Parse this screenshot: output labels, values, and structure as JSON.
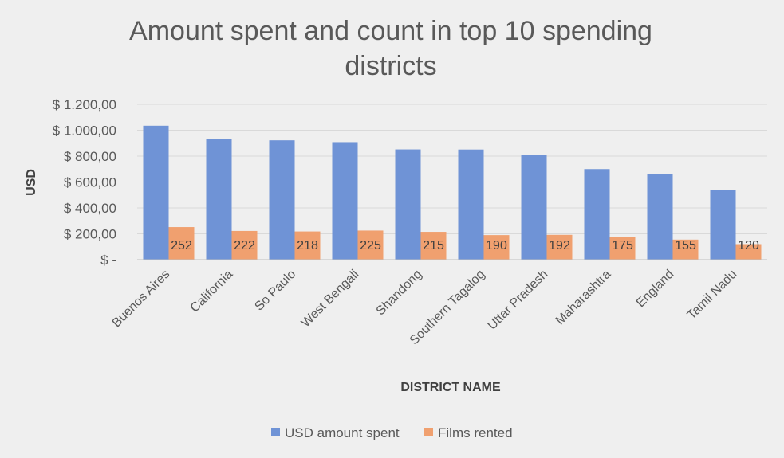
{
  "chart_data": {
    "type": "bar",
    "title": "Amount spent and count in top 10 spending districts",
    "xlabel": "DISTRICT NAME",
    "ylabel": "USD",
    "categories": [
      "Buenos Aires",
      "California",
      "So Paulo",
      "West Bengali",
      "Shandong",
      "Southern Tagalog",
      "Uttar Pradesh",
      "Maharashtra",
      "England",
      "Tamil Nadu"
    ],
    "series": [
      {
        "name": "USD amount spent",
        "color": "#6f93d6",
        "values": [
          1035,
          935,
          922,
          908,
          852,
          851,
          810,
          700,
          659,
          536
        ]
      },
      {
        "name": "Films rented",
        "color": "#f0a06f",
        "values": [
          252,
          222,
          218,
          225,
          215,
          190,
          192,
          175,
          155,
          120
        ],
        "data_labels": true
      }
    ],
    "ylim": [
      0,
      1200
    ],
    "yticks": [
      0,
      200,
      400,
      600,
      800,
      1000,
      1200
    ],
    "ytick_labels": [
      "$ -",
      "$ 200,00",
      "$ 400,00",
      "$ 600,00",
      "$ 800,00",
      "$ 1.000,00",
      "$ 1.200,00"
    ],
    "grid": true,
    "legend_position": "bottom",
    "background": "#efefef",
    "gridline_color": "#d9d9d9"
  }
}
